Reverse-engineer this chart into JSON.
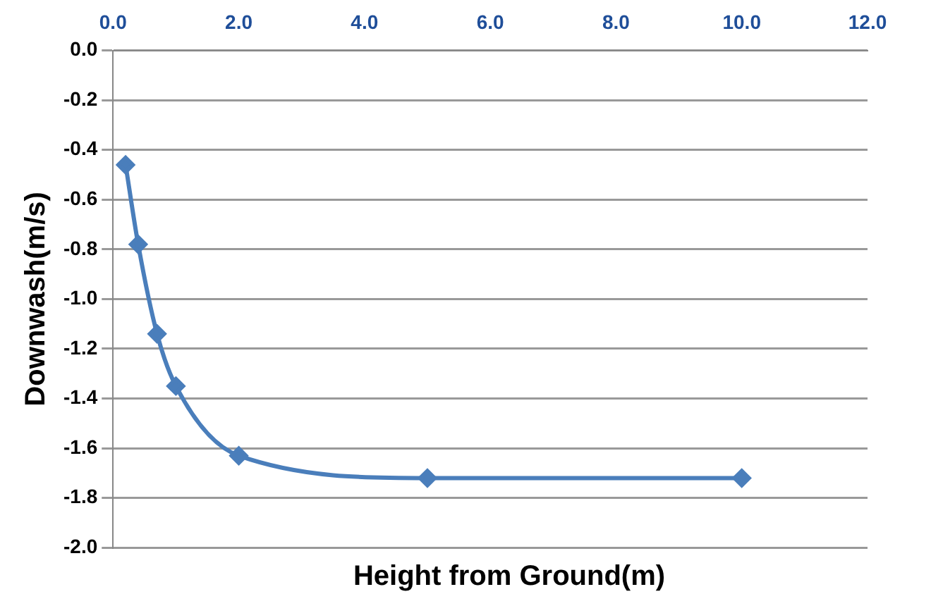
{
  "chart_data": {
    "type": "line",
    "xlabel": "Height from Ground(m)",
    "ylabel": "Downwash(m/s)",
    "x": [
      0.2,
      0.4,
      0.7,
      1.0,
      2.0,
      5.0,
      10.0
    ],
    "series": [
      {
        "color": "#4a7ebb",
        "values": [
          -0.46,
          -0.78,
          -1.14,
          -1.35,
          -1.63,
          -1.72,
          -1.72
        ]
      }
    ],
    "xlim": [
      0,
      12
    ],
    "xticks": [
      {
        "value": 0,
        "label": "0.0"
      },
      {
        "value": 2,
        "label": "2.0"
      },
      {
        "value": 4,
        "label": "4.0"
      },
      {
        "value": 6,
        "label": "6.0"
      },
      {
        "value": 8,
        "label": "8.0"
      },
      {
        "value": 10,
        "label": "10.0"
      },
      {
        "value": 12,
        "label": "12.0"
      }
    ],
    "ylim": [
      -2,
      0
    ],
    "yticks": [
      {
        "value": 0,
        "label": "0.0"
      },
      {
        "value": -0.2,
        "label": "-0.2"
      },
      {
        "value": -0.4,
        "label": "-0.4"
      },
      {
        "value": -0.6,
        "label": "-0.6"
      },
      {
        "value": -0.8,
        "label": "-0.8"
      },
      {
        "value": -1,
        "label": "-1.0"
      },
      {
        "value": -1.2,
        "label": "-1.2"
      },
      {
        "value": -1.4,
        "label": "-1.4"
      },
      {
        "value": -1.6,
        "label": "-1.6"
      },
      {
        "value": -1.8,
        "label": "-1.8"
      },
      {
        "value": -2,
        "label": "-2.0"
      }
    ],
    "grid": "y",
    "legend": false,
    "marker": "diamond",
    "line_style": "solid"
  }
}
